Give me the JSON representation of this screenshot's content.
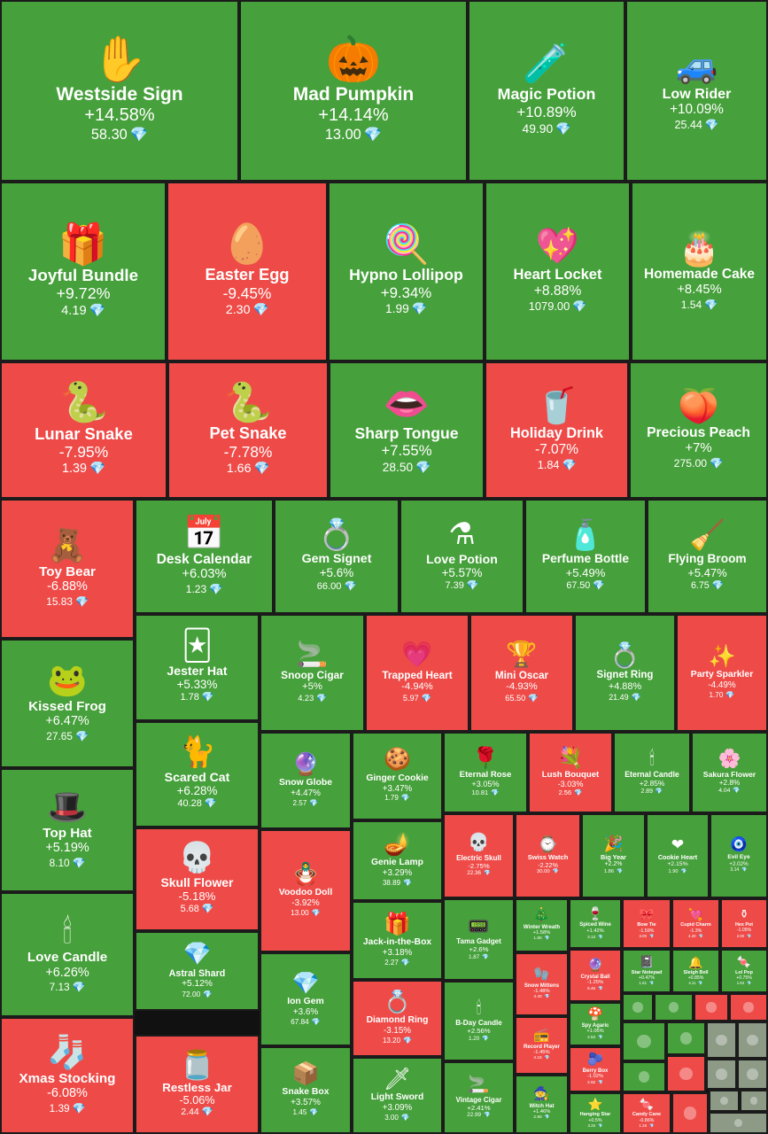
{
  "colors": {
    "up": "#46a03b",
    "down": "#ee4b48",
    "flat": "#8c9a86",
    "gem": "#6fd3ff"
  },
  "chart_data": {
    "type": "treemap",
    "unit_icon": "diamond-icon",
    "items": [
      {
        "name": "Westside Sign",
        "change": "+14.58%",
        "price": "58.30",
        "dir": "up",
        "icon": "✋",
        "icon_name": "hand-sign-icon"
      },
      {
        "name": "Mad Pumpkin",
        "change": "+14.14%",
        "price": "13.00",
        "dir": "up",
        "icon": "🎃",
        "icon_name": "pumpkin-icon"
      },
      {
        "name": "Magic Potion",
        "change": "+10.89%",
        "price": "49.90",
        "dir": "up",
        "icon": "🧪",
        "icon_name": "potion-icon"
      },
      {
        "name": "Low Rider",
        "change": "+10.09%",
        "price": "25.44",
        "dir": "up",
        "icon": "🚙",
        "icon_name": "car-icon"
      },
      {
        "name": "Joyful Bundle",
        "change": "+9.72%",
        "price": "4.19",
        "dir": "up",
        "icon": "🎁",
        "icon_name": "gift-bundle-icon"
      },
      {
        "name": "Easter Egg",
        "change": "-9.45%",
        "price": "2.30",
        "dir": "down",
        "icon": "🥚",
        "icon_name": "egg-icon"
      },
      {
        "name": "Hypno Lollipop",
        "change": "+9.34%",
        "price": "1.99",
        "dir": "up",
        "icon": "🍭",
        "icon_name": "lollipop-icon"
      },
      {
        "name": "Heart Locket",
        "change": "+8.88%",
        "price": "1079.00",
        "dir": "up",
        "icon": "💖",
        "icon_name": "locket-icon"
      },
      {
        "name": "Homemade Cake",
        "change": "+8.45%",
        "price": "1.54",
        "dir": "up",
        "icon": "🎂",
        "icon_name": "cake-icon"
      },
      {
        "name": "Lunar Snake",
        "change": "-7.95%",
        "price": "1.39",
        "dir": "down",
        "icon": "🐍",
        "icon_name": "snake-icon"
      },
      {
        "name": "Pet Snake",
        "change": "-7.78%",
        "price": "1.66",
        "dir": "down",
        "icon": "🐍",
        "icon_name": "pet-snake-icon"
      },
      {
        "name": "Sharp Tongue",
        "change": "+7.55%",
        "price": "28.50",
        "dir": "up",
        "icon": "👄",
        "icon_name": "lips-icon"
      },
      {
        "name": "Holiday Drink",
        "change": "-7.07%",
        "price": "1.84",
        "dir": "down",
        "icon": "🥤",
        "icon_name": "drink-icon"
      },
      {
        "name": "Precious Peach",
        "change": "+7%",
        "price": "275.00",
        "dir": "up",
        "icon": "🍑",
        "icon_name": "peach-icon"
      },
      {
        "name": "Toy Bear",
        "change": "-6.88%",
        "price": "15.83",
        "dir": "down",
        "icon": "🧸",
        "icon_name": "teddy-bear-icon"
      },
      {
        "name": "Desk Calendar",
        "change": "+6.03%",
        "price": "1.23",
        "dir": "up",
        "icon": "📅",
        "icon_name": "calendar-icon"
      },
      {
        "name": "Gem Signet",
        "change": "+5.6%",
        "price": "66.00",
        "dir": "up",
        "icon": "💍",
        "icon_name": "ring-icon"
      },
      {
        "name": "Love Potion",
        "change": "+5.57%",
        "price": "7.39",
        "dir": "up",
        "icon": "⚗",
        "icon_name": "love-potion-icon"
      },
      {
        "name": "Perfume Bottle",
        "change": "+5.49%",
        "price": "67.50",
        "dir": "up",
        "icon": "🧴",
        "icon_name": "perfume-icon"
      },
      {
        "name": "Flying Broom",
        "change": "+5.47%",
        "price": "6.75",
        "dir": "up",
        "icon": "🧹",
        "icon_name": "broom-icon"
      },
      {
        "name": "Kissed Frog",
        "change": "+6.47%",
        "price": "27.65",
        "dir": "up",
        "icon": "🐸",
        "icon_name": "frog-icon"
      },
      {
        "name": "Jester Hat",
        "change": "+5.33%",
        "price": "1.78",
        "dir": "up",
        "icon": "🃏",
        "icon_name": "jester-hat-icon"
      },
      {
        "name": "Snoop Cigar",
        "change": "+5%",
        "price": "4.23",
        "dir": "up",
        "icon": "🚬",
        "icon_name": "cigar-icon"
      },
      {
        "name": "Trapped Heart",
        "change": "-4.94%",
        "price": "5.97",
        "dir": "down",
        "icon": "💗",
        "icon_name": "heart-icon"
      },
      {
        "name": "Mini Oscar",
        "change": "-4.93%",
        "price": "65.50",
        "dir": "down",
        "icon": "🏆",
        "icon_name": "trophy-icon"
      },
      {
        "name": "Signet Ring",
        "change": "+4.88%",
        "price": "21.49",
        "dir": "up",
        "icon": "💍",
        "icon_name": "signet-ring-icon"
      },
      {
        "name": "Party Sparkler",
        "change": "-4.49%",
        "price": "1.70",
        "dir": "down",
        "icon": "✨",
        "icon_name": "sparkler-icon"
      },
      {
        "name": "Top Hat",
        "change": "+5.19%",
        "price": "8.10",
        "dir": "up",
        "icon": "🎩",
        "icon_name": "top-hat-icon"
      },
      {
        "name": "Scared Cat",
        "change": "+6.28%",
        "price": "40.28",
        "dir": "up",
        "icon": "🐈",
        "icon_name": "cat-icon"
      },
      {
        "name": "Snow Globe",
        "change": "+4.47%",
        "price": "2.57",
        "dir": "up",
        "icon": "🔮",
        "icon_name": "snow-globe-icon"
      },
      {
        "name": "Ginger Cookie",
        "change": "+3.47%",
        "price": "1.79",
        "dir": "up",
        "icon": "🍪",
        "icon_name": "cookie-icon"
      },
      {
        "name": "Eternal Rose",
        "change": "+3.05%",
        "price": "10.81",
        "dir": "up",
        "icon": "🌹",
        "icon_name": "rose-icon"
      },
      {
        "name": "Lush Bouquet",
        "change": "-3.03%",
        "price": "2.56",
        "dir": "down",
        "icon": "💐",
        "icon_name": "bouquet-icon"
      },
      {
        "name": "Eternal Candle",
        "change": "+2.85%",
        "price": "2.89",
        "dir": "up",
        "icon": "🕯",
        "icon_name": "candle-icon"
      },
      {
        "name": "Sakura Flower",
        "change": "+2.8%",
        "price": "4.04",
        "dir": "up",
        "icon": "🌸",
        "icon_name": "sakura-icon"
      },
      {
        "name": "Skull Flower",
        "change": "-5.18%",
        "price": "5.68",
        "dir": "down",
        "icon": "💀",
        "icon_name": "skull-flower-icon"
      },
      {
        "name": "Genie Lamp",
        "change": "+3.29%",
        "price": "38.89",
        "dir": "up",
        "icon": "🪔",
        "icon_name": "lamp-icon"
      },
      {
        "name": "Electric Skull",
        "change": "-2.75%",
        "price": "22.36",
        "dir": "down",
        "icon": "💀",
        "icon_name": "skull-icon"
      },
      {
        "name": "Swiss Watch",
        "change": "-2.22%",
        "price": "30.00",
        "dir": "down",
        "icon": "⌚",
        "icon_name": "watch-icon"
      },
      {
        "name": "Big Year",
        "change": "+2.2%",
        "price": "1.86",
        "dir": "up",
        "icon": "🎉",
        "icon_name": "big-year-icon"
      },
      {
        "name": "Cookie Heart",
        "change": "+2.15%",
        "price": "1.90",
        "dir": "up",
        "icon": "❤",
        "icon_name": "cookie-heart-icon"
      },
      {
        "name": "Evil Eye",
        "change": "+2.02%",
        "price": "3.14",
        "dir": "up",
        "icon": "🧿",
        "icon_name": "evil-eye-icon"
      },
      {
        "name": "Love Candle",
        "change": "+6.26%",
        "price": "7.13",
        "dir": "up",
        "icon": "🕯",
        "icon_name": "love-candle-icon"
      },
      {
        "name": "Astral Shard",
        "change": "+5.12%",
        "price": "72.00",
        "dir": "up",
        "icon": "💎",
        "icon_name": "crystal-icon"
      },
      {
        "name": "Voodoo Doll",
        "change": "-3.92%",
        "price": "13.00",
        "dir": "down",
        "icon": "🪆",
        "icon_name": "voodoo-doll-icon"
      },
      {
        "name": "Jack-in-the-Box",
        "change": "+3.18%",
        "price": "2.27",
        "dir": "up",
        "icon": "🎁",
        "icon_name": "jack-box-icon"
      },
      {
        "name": "Tama Gadget",
        "change": "+2.6%",
        "price": "1.87",
        "dir": "up",
        "icon": "📟",
        "icon_name": "gadget-icon"
      },
      {
        "name": "Winter Wreath",
        "change": "+1.58%",
        "price": "1.90",
        "dir": "up",
        "icon": "🎄",
        "icon_name": "wreath-icon"
      },
      {
        "name": "Spiced Wine",
        "change": "+1.42%",
        "price": "3.13",
        "dir": "up",
        "icon": "🍷",
        "icon_name": "wine-icon"
      },
      {
        "name": "Bow Tie",
        "change": "-1.59%",
        "price": "3.00",
        "dir": "down",
        "icon": "🎀",
        "icon_name": "bow-tie-icon"
      },
      {
        "name": "Cupid Charm",
        "change": "-1.3%",
        "price": "4.20",
        "dir": "down",
        "icon": "💘",
        "icon_name": "cupid-icon"
      },
      {
        "name": "Hex Pot",
        "change": "-1.05%",
        "price": "2.00",
        "dir": "down",
        "icon": "⚱",
        "icon_name": "hex-pot-icon"
      },
      {
        "name": "Ion Gem",
        "change": "+3.6%",
        "price": "67.84",
        "dir": "up",
        "icon": "💎",
        "icon_name": "ion-gem-icon"
      },
      {
        "name": "Snow Mittens",
        "change": "-1.48%",
        "price": "4.40",
        "dir": "down",
        "icon": "🧤",
        "icon_name": "mittens-icon"
      },
      {
        "name": "Crystal Ball",
        "change": "-1.25%",
        "price": "6.46",
        "dir": "down",
        "icon": "🔮",
        "icon_name": "crystal-ball-icon"
      },
      {
        "name": "Star Notepad",
        "change": "+0.47%",
        "price": "1.61",
        "dir": "up",
        "icon": "📓",
        "icon_name": "notepad-icon"
      },
      {
        "name": "Sleigh Bell",
        "change": "+0.85%",
        "price": "4.11",
        "dir": "up",
        "icon": "🔔",
        "icon_name": "bell-icon"
      },
      {
        "name": "Lol Pop",
        "change": "+0.75%",
        "price": "1.63",
        "dir": "up",
        "icon": "🍬",
        "icon_name": "lolpop-icon"
      },
      {
        "name": "Diamond Ring",
        "change": "-3.15%",
        "price": "13.20",
        "dir": "down",
        "icon": "💍",
        "icon_name": "diamond-ring-icon"
      },
      {
        "name": "B-Day Candle",
        "change": "+2.56%",
        "price": "1.20",
        "dir": "up",
        "icon": "🕯",
        "icon_name": "bday-candle-icon"
      },
      {
        "name": "Spy Agaric",
        "change": "+1.06%",
        "price": "2.53",
        "dir": "up",
        "icon": "🍄",
        "icon_name": "mushroom-icon"
      },
      {
        "name": "Berry Box",
        "change": "-1.02%",
        "price": "2.92",
        "dir": "down",
        "icon": "🫐",
        "icon_name": "berry-box-icon"
      },
      {
        "name": "Record Player",
        "change": "-1.45%",
        "price": "4.15",
        "dir": "down",
        "icon": "📻",
        "icon_name": "record-player-icon"
      },
      {
        "name": "Xmas Stocking",
        "change": "-6.08%",
        "price": "1.39",
        "dir": "down",
        "icon": "🧦",
        "icon_name": "stocking-icon"
      },
      {
        "name": "Restless Jar",
        "change": "-5.06%",
        "price": "2.44",
        "dir": "down",
        "icon": "🫙",
        "icon_name": "jar-icon"
      },
      {
        "name": "Snake Box",
        "change": "+3.57%",
        "price": "1.45",
        "dir": "up",
        "icon": "📦",
        "icon_name": "snake-box-icon"
      },
      {
        "name": "Light Sword",
        "change": "+3.09%",
        "price": "3.00",
        "dir": "up",
        "icon": "🗡",
        "icon_name": "sword-icon"
      },
      {
        "name": "Vintage Cigar",
        "change": "+2.41%",
        "price": "22.99",
        "dir": "up",
        "icon": "🚬",
        "icon_name": "vintage-cigar-icon"
      },
      {
        "name": "Witch Hat",
        "change": "+1.46%",
        "price": "2.90",
        "dir": "up",
        "icon": "🧙",
        "icon_name": "witch-hat-icon"
      },
      {
        "name": "Hanging Star",
        "change": "+0.5%",
        "price": "3.25",
        "dir": "up",
        "icon": "⭐",
        "icon_name": "star-icon"
      },
      {
        "name": "Candy Cane",
        "change": "-0.86%",
        "price": "1.28",
        "dir": "down",
        "icon": "🍬",
        "icon_name": "candy-cane-icon"
      }
    ]
  }
}
